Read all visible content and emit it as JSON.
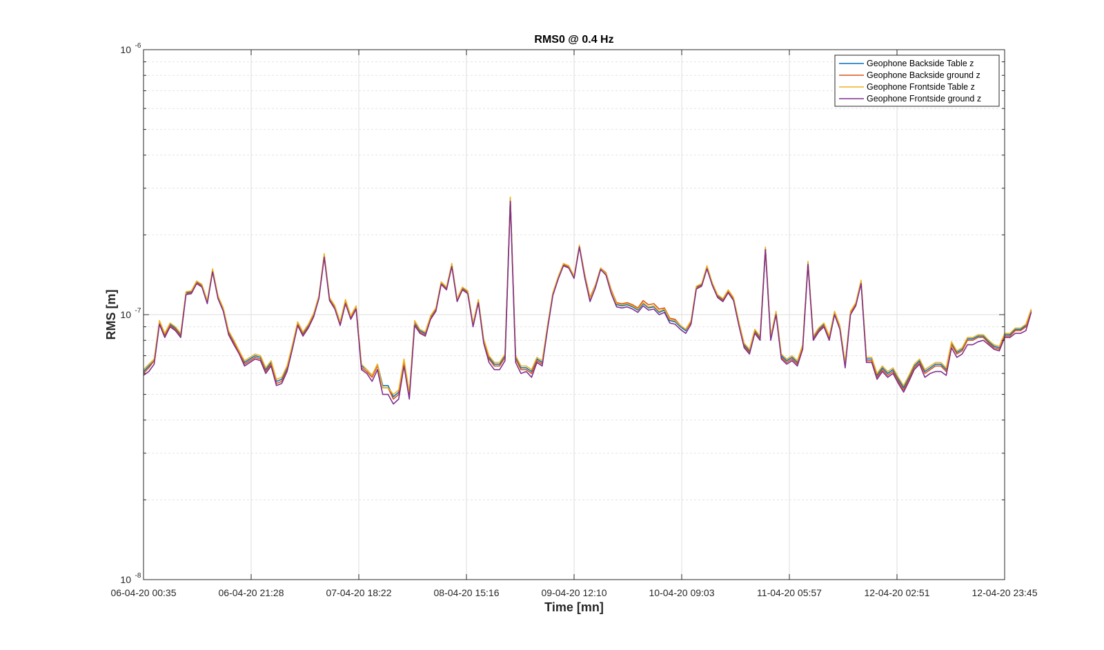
{
  "chart_data": {
    "type": "line",
    "title": "RMS0 @ 0.4 Hz",
    "xlabel": "Time [mn]",
    "ylabel": "RMS [m]",
    "yscale": "log",
    "ylim": [
      1e-08,
      1e-06
    ],
    "grid": true,
    "legend_position": "top-right",
    "x_tick_labels": [
      "06-04-20 00:35",
      "06-04-20 21:28",
      "07-04-20 18:22",
      "08-04-20 15:16",
      "09-04-20 12:10",
      "10-04-20 09:03",
      "11-04-20 05:57",
      "12-04-20 02:51",
      "12-04-20 23:45"
    ],
    "y_tick_labels": [
      {
        "base": "10",
        "exp": "-8"
      },
      {
        "base": "10",
        "exp": "-7"
      },
      {
        "base": "10",
        "exp": "-6"
      }
    ],
    "x_count": 163,
    "x_note": "163 equally spaced samples from 06-04-20 00:35 to 12-04-20 23:45",
    "series": [
      {
        "name": "Geophone Backside Table z",
        "color": "#0072BD",
        "values": [
          6.1e-08,
          6.4e-08,
          6.7e-08,
          9.4e-08,
          8.4e-08,
          9.2e-08,
          8.9e-08,
          8.4e-08,
          1.21e-07,
          1.22e-07,
          1.33e-07,
          1.29e-07,
          1.12e-07,
          1.47e-07,
          1.17e-07,
          1.05e-07,
          8.6e-08,
          7.9e-08,
          7.3e-08,
          6.6e-08,
          6.8e-08,
          7e-08,
          6.9e-08,
          6.2e-08,
          6.6e-08,
          5.6e-08,
          5.7e-08,
          6.3e-08,
          7.6e-08,
          9.3e-08,
          8.5e-08,
          9.1e-08,
          1e-07,
          1.17e-07,
          1.67e-07,
          1.15e-07,
          1.07e-07,
          9.3e-08,
          1.12e-07,
          9.8e-08,
          1.07e-07,
          6.4e-08,
          6.2e-08,
          5.9e-08,
          6.5e-08,
          5.4e-08,
          5.4e-08,
          4.9e-08,
          5.1e-08,
          6.7e-08,
          5e-08,
          9.3e-08,
          8.7e-08,
          8.5e-08,
          9.8e-08,
          1.05e-07,
          1.32e-07,
          1.26e-07,
          1.54e-07,
          1.14e-07,
          1.26e-07,
          1.22e-07,
          9.2e-08,
          1.13e-07,
          8e-08,
          6.9e-08,
          6.5e-08,
          6.5e-08,
          7e-08,
          2.75e-07,
          6.9e-08,
          6.3e-08,
          6.3e-08,
          6.1e-08,
          6.8e-08,
          6.6e-08,
          9e-08,
          1.2e-07,
          1.38e-07,
          1.55e-07,
          1.51e-07,
          1.38e-07,
          1.81e-07,
          1.4e-07,
          1.14e-07,
          1.27e-07,
          1.49e-07,
          1.42e-07,
          1.22e-07,
          1.09e-07,
          1.08e-07,
          1.09e-07,
          1.07e-07,
          1.04e-07,
          1.1e-07,
          1.06e-07,
          1.07e-07,
          1.02e-07,
          1.04e-07,
          9.5e-08,
          9.4e-08,
          9e-08,
          8.7e-08,
          9.4e-08,
          1.27e-07,
          1.3e-07,
          1.51e-07,
          1.31e-07,
          1.18e-07,
          1.14e-07,
          1.23e-07,
          1.15e-07,
          9.3e-08,
          7.7e-08,
          7.3e-08,
          8.7e-08,
          8.2e-08,
          1.78e-07,
          8.2e-08,
          1.02e-07,
          7e-08,
          6.7e-08,
          6.9e-08,
          6.6e-08,
          7.6e-08,
          1.57e-07,
          8.2e-08,
          8.8e-08,
          9.2e-08,
          8.2e-08,
          1.02e-07,
          9e-08,
          6.5e-08,
          1.02e-07,
          1.1e-07,
          1.33e-07,
          6.8e-08,
          6.8e-08,
          5.9e-08,
          6.3e-08,
          6e-08,
          6.2e-08,
          5.7e-08,
          5.3e-08,
          5.8e-08,
          6.4e-08,
          6.7e-08,
          6.1e-08,
          6.3e-08,
          6.5e-08,
          6.5e-08,
          6.2e-08,
          7.8e-08,
          7.2e-08,
          7.4e-08,
          8.1e-08,
          8.1e-08,
          8.3e-08,
          8.3e-08,
          7.9e-08,
          7.6e-08,
          7.5e-08,
          8.4e-08,
          8.4e-08,
          8.8e-08,
          8.8e-08,
          9.1e-08,
          1.03e-07
        ]
      },
      {
        "name": "Geophone Backside ground z",
        "color": "#D95319",
        "values": [
          6e-08,
          6.3e-08,
          6.7e-08,
          9.3e-08,
          8.3e-08,
          9.1e-08,
          8.8e-08,
          8.3e-08,
          1.2e-07,
          1.21e-07,
          1.32e-07,
          1.28e-07,
          1.11e-07,
          1.46e-07,
          1.16e-07,
          1.04e-07,
          8.5e-08,
          7.8e-08,
          7.2e-08,
          6.5e-08,
          6.7e-08,
          6.9e-08,
          6.8e-08,
          6.1e-08,
          6.5e-08,
          5.5e-08,
          5.6e-08,
          6.2e-08,
          7.5e-08,
          9.2e-08,
          8.4e-08,
          9e-08,
          9.9e-08,
          1.16e-07,
          1.66e-07,
          1.14e-07,
          1.06e-07,
          9.2e-08,
          1.11e-07,
          9.7e-08,
          1.06e-07,
          6.3e-08,
          6.1e-08,
          5.8e-08,
          6.4e-08,
          5.3e-08,
          5.3e-08,
          4.8e-08,
          5e-08,
          6.6e-08,
          4.9e-08,
          9.2e-08,
          8.6e-08,
          8.4e-08,
          9.7e-08,
          1.04e-07,
          1.31e-07,
          1.25e-07,
          1.53e-07,
          1.13e-07,
          1.25e-07,
          1.21e-07,
          9.1e-08,
          1.12e-07,
          7.9e-08,
          6.8e-08,
          6.4e-08,
          6.4e-08,
          6.9e-08,
          2.72e-07,
          6.8e-08,
          6.2e-08,
          6.2e-08,
          6e-08,
          6.7e-08,
          6.5e-08,
          8.9e-08,
          1.19e-07,
          1.37e-07,
          1.54e-07,
          1.52e-07,
          1.39e-07,
          1.82e-07,
          1.42e-07,
          1.16e-07,
          1.29e-07,
          1.5e-07,
          1.44e-07,
          1.24e-07,
          1.11e-07,
          1.1e-07,
          1.11e-07,
          1.09e-07,
          1.06e-07,
          1.13e-07,
          1.09e-07,
          1.1e-07,
          1.05e-07,
          1.06e-07,
          9.7e-08,
          9.6e-08,
          9.1e-08,
          8.8e-08,
          9.3e-08,
          1.26e-07,
          1.29e-07,
          1.5e-07,
          1.3e-07,
          1.17e-07,
          1.13e-07,
          1.22e-07,
          1.14e-07,
          9.2e-08,
          7.6e-08,
          7.2e-08,
          8.6e-08,
          8.1e-08,
          1.77e-07,
          8.1e-08,
          1.01e-07,
          6.9e-08,
          6.6e-08,
          6.8e-08,
          6.5e-08,
          7.5e-08,
          1.56e-07,
          8.1e-08,
          8.7e-08,
          9.1e-08,
          8.1e-08,
          1.01e-07,
          8.9e-08,
          6.4e-08,
          1.01e-07,
          1.09e-07,
          1.32e-07,
          6.7e-08,
          6.7e-08,
          5.8e-08,
          6.2e-08,
          5.9e-08,
          6.1e-08,
          5.6e-08,
          5.2e-08,
          5.7e-08,
          6.3e-08,
          6.6e-08,
          6e-08,
          6.2e-08,
          6.4e-08,
          6.4e-08,
          6.1e-08,
          7.7e-08,
          7.1e-08,
          7.3e-08,
          8e-08,
          8e-08,
          8.2e-08,
          8.2e-08,
          7.8e-08,
          7.5e-08,
          7.4e-08,
          8.3e-08,
          8.3e-08,
          8.7e-08,
          8.7e-08,
          9e-08,
          1.04e-07
        ]
      },
      {
        "name": "Geophone Frontside Table z",
        "color": "#EDB120",
        "values": [
          6.2e-08,
          6.5e-08,
          6.8e-08,
          9.5e-08,
          8.5e-08,
          9.3e-08,
          9e-08,
          8.5e-08,
          1.22e-07,
          1.23e-07,
          1.34e-07,
          1.3e-07,
          1.13e-07,
          1.49e-07,
          1.18e-07,
          1.06e-07,
          8.7e-08,
          8e-08,
          7.3e-08,
          6.7e-08,
          6.9e-08,
          7.1e-08,
          7e-08,
          6.3e-08,
          6.7e-08,
          5.7e-08,
          5.8e-08,
          6.4e-08,
          7.7e-08,
          9.4e-08,
          8.6e-08,
          9.2e-08,
          1.01e-07,
          1.18e-07,
          1.7e-07,
          1.16e-07,
          1.08e-07,
          9.4e-08,
          1.14e-07,
          9.9e-08,
          1.08e-07,
          6.5e-08,
          6.2e-08,
          5.9e-08,
          6.5e-08,
          5.3e-08,
          5.3e-08,
          5e-08,
          5.2e-08,
          6.8e-08,
          5.1e-08,
          9.5e-08,
          8.8e-08,
          8.6e-08,
          9.9e-08,
          1.06e-07,
          1.33e-07,
          1.27e-07,
          1.56e-07,
          1.15e-07,
          1.27e-07,
          1.23e-07,
          9.3e-08,
          1.14e-07,
          8.1e-08,
          7e-08,
          6.6e-08,
          6.6e-08,
          7.1e-08,
          2.78e-07,
          7e-08,
          6.4e-08,
          6.4e-08,
          6.2e-08,
          6.9e-08,
          6.7e-08,
          9.1e-08,
          1.21e-07,
          1.39e-07,
          1.56e-07,
          1.53e-07,
          1.4e-07,
          1.83e-07,
          1.41e-07,
          1.15e-07,
          1.28e-07,
          1.5e-07,
          1.43e-07,
          1.23e-07,
          1.1e-07,
          1.09e-07,
          1.1e-07,
          1.08e-07,
          1.05e-07,
          1.11e-07,
          1.07e-07,
          1.08e-07,
          1.03e-07,
          1.05e-07,
          9.6e-08,
          9.5e-08,
          9.1e-08,
          8.8e-08,
          9.5e-08,
          1.28e-07,
          1.31e-07,
          1.53e-07,
          1.32e-07,
          1.19e-07,
          1.15e-07,
          1.24e-07,
          1.16e-07,
          9.4e-08,
          7.8e-08,
          7.4e-08,
          8.8e-08,
          8.3e-08,
          1.8e-07,
          8.3e-08,
          1.03e-07,
          7.1e-08,
          6.8e-08,
          7e-08,
          6.7e-08,
          7.7e-08,
          1.59e-07,
          8.3e-08,
          8.9e-08,
          9.3e-08,
          8.3e-08,
          1.03e-07,
          9.1e-08,
          6.6e-08,
          1.03e-07,
          1.11e-07,
          1.35e-07,
          6.9e-08,
          6.9e-08,
          6e-08,
          6.4e-08,
          6.1e-08,
          6.3e-08,
          5.8e-08,
          5.4e-08,
          5.9e-08,
          6.5e-08,
          6.8e-08,
          6.2e-08,
          6.4e-08,
          6.6e-08,
          6.6e-08,
          6.3e-08,
          7.9e-08,
          7.3e-08,
          7.5e-08,
          8.2e-08,
          8.2e-08,
          8.4e-08,
          8.4e-08,
          8e-08,
          7.7e-08,
          7.6e-08,
          8.5e-08,
          8.5e-08,
          8.9e-08,
          8.9e-08,
          9.2e-08,
          1.05e-07
        ]
      },
      {
        "name": "Geophone Frontside ground z",
        "color": "#7E2F8E",
        "values": [
          5.9e-08,
          6.1e-08,
          6.5e-08,
          9.2e-08,
          8.2e-08,
          9e-08,
          8.7e-08,
          8.2e-08,
          1.19e-07,
          1.2e-07,
          1.31e-07,
          1.27e-07,
          1.1e-07,
          1.45e-07,
          1.15e-07,
          1.03e-07,
          8.4e-08,
          7.7e-08,
          7.1e-08,
          6.4e-08,
          6.6e-08,
          6.8e-08,
          6.7e-08,
          6e-08,
          6.4e-08,
          5.4e-08,
          5.5e-08,
          6.1e-08,
          7.4e-08,
          9.1e-08,
          8.3e-08,
          8.9e-08,
          9.8e-08,
          1.15e-07,
          1.65e-07,
          1.13e-07,
          1.05e-07,
          9.1e-08,
          1.1e-07,
          9.6e-08,
          1.05e-07,
          6.2e-08,
          6e-08,
          5.6e-08,
          6.2e-08,
          5e-08,
          5e-08,
          4.6e-08,
          4.8e-08,
          6.4e-08,
          4.8e-08,
          9.1e-08,
          8.5e-08,
          8.3e-08,
          9.6e-08,
          1.03e-07,
          1.3e-07,
          1.24e-07,
          1.52e-07,
          1.12e-07,
          1.24e-07,
          1.2e-07,
          9e-08,
          1.11e-07,
          7.8e-08,
          6.6e-08,
          6.2e-08,
          6.2e-08,
          6.7e-08,
          2.68e-07,
          6.6e-08,
          6e-08,
          6.1e-08,
          5.8e-08,
          6.6e-08,
          6.4e-08,
          8.8e-08,
          1.18e-07,
          1.36e-07,
          1.53e-07,
          1.5e-07,
          1.37e-07,
          1.8e-07,
          1.38e-07,
          1.12e-07,
          1.26e-07,
          1.48e-07,
          1.41e-07,
          1.2e-07,
          1.07e-07,
          1.06e-07,
          1.07e-07,
          1.05e-07,
          1.02e-07,
          1.08e-07,
          1.04e-07,
          1.05e-07,
          1e-07,
          1.02e-07,
          9.3e-08,
          9.2e-08,
          8.8e-08,
          8.5e-08,
          9.2e-08,
          1.25e-07,
          1.28e-07,
          1.49e-07,
          1.29e-07,
          1.16e-07,
          1.12e-07,
          1.21e-07,
          1.13e-07,
          9.1e-08,
          7.5e-08,
          7.1e-08,
          8.5e-08,
          8e-08,
          1.76e-07,
          8e-08,
          1e-07,
          6.8e-08,
          6.5e-08,
          6.7e-08,
          6.4e-08,
          7.4e-08,
          1.55e-07,
          8e-08,
          8.6e-08,
          9e-08,
          8e-08,
          1e-07,
          8.8e-08,
          6.3e-08,
          1e-07,
          1.08e-07,
          1.31e-07,
          6.6e-08,
          6.6e-08,
          5.7e-08,
          6.1e-08,
          5.8e-08,
          6e-08,
          5.5e-08,
          5.1e-08,
          5.6e-08,
          6.2e-08,
          6.5e-08,
          5.8e-08,
          6e-08,
          6.1e-08,
          6.1e-08,
          5.9e-08,
          7.5e-08,
          6.9e-08,
          7.1e-08,
          7.7e-08,
          7.7e-08,
          7.9e-08,
          8e-08,
          7.7e-08,
          7.4e-08,
          7.3e-08,
          8.2e-08,
          8.2e-08,
          8.5e-08,
          8.5e-08,
          8.7e-08,
          1.02e-07
        ]
      }
    ]
  }
}
